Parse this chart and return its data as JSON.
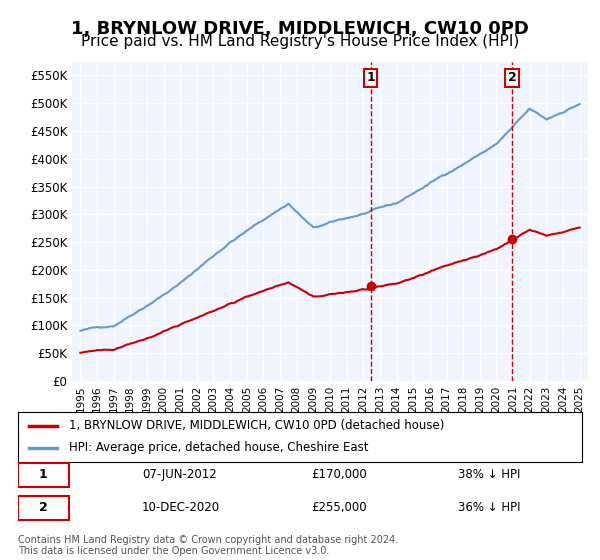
{
  "title": "1, BRYNLOW DRIVE, MIDDLEWICH, CW10 0PD",
  "subtitle": "Price paid vs. HM Land Registry's House Price Index (HPI)",
  "title_fontsize": 13,
  "subtitle_fontsize": 11,
  "background_color": "#ffffff",
  "plot_bg_color": "#f0f4ff",
  "grid_color": "#ffffff",
  "ylim": [
    0,
    575000
  ],
  "yticks": [
    0,
    50000,
    100000,
    150000,
    200000,
    250000,
    300000,
    350000,
    400000,
    450000,
    500000,
    550000
  ],
  "ytick_labels": [
    "£0",
    "£50K",
    "£100K",
    "£150K",
    "£200K",
    "£250K",
    "£300K",
    "£350K",
    "£400K",
    "£450K",
    "£500K",
    "£550K"
  ],
  "sale1_date_num": 2012.44,
  "sale1_price": 170000,
  "sale1_label": "1",
  "sale2_date_num": 2020.94,
  "sale2_price": 255000,
  "sale2_label": "2",
  "legend_entries": [
    "1, BRYNLOW DRIVE, MIDDLEWICH, CW10 0PD (detached house)",
    "HPI: Average price, detached house, Cheshire East"
  ],
  "legend_colors": [
    "#cc0000",
    "#6699cc"
  ],
  "table_data": [
    [
      "1",
      "07-JUN-2012",
      "£170,000",
      "38% ↓ HPI"
    ],
    [
      "2",
      "10-DEC-2020",
      "£255,000",
      "36% ↓ HPI"
    ]
  ],
  "footnote": "Contains HM Land Registry data © Crown copyright and database right 2024.\nThis data is licensed under the Open Government Licence v3.0.",
  "sale_marker_color1": "#cc0000",
  "sale_marker_color2": "#cc0000",
  "vline_color": "#cc0000",
  "vline_style": "--",
  "hpi_line_color": "#6699cc",
  "price_line_color": "#cc0000"
}
